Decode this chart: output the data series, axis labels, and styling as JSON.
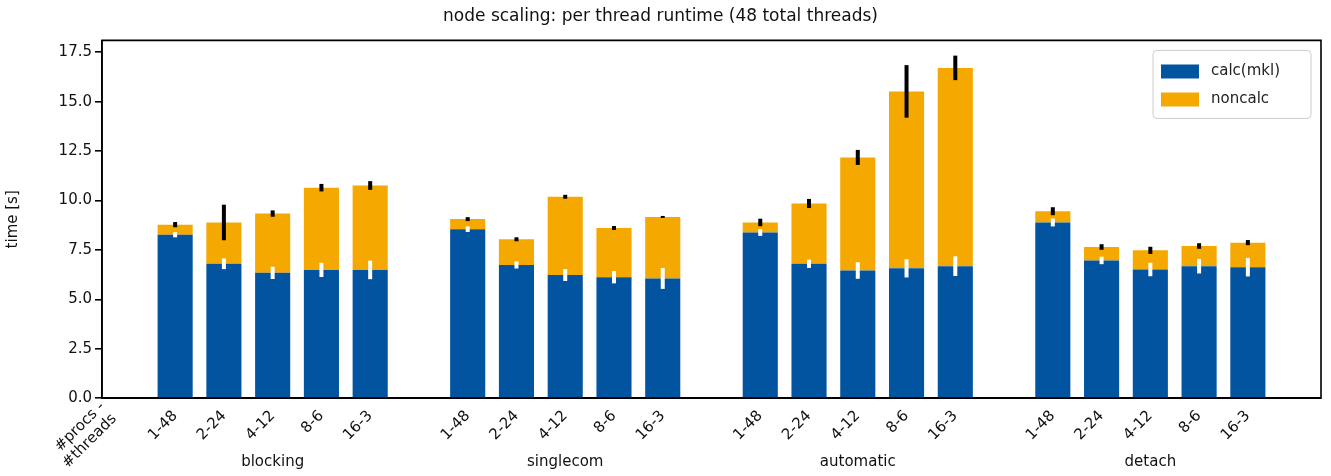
{
  "chart_data": {
    "type": "bar",
    "title": "node scaling: per thread runtime (48 total threads)",
    "ylabel": "time [s]",
    "categories": [
      null,
      "1-48",
      "2-24",
      "4-12",
      "8-6",
      "16-3",
      null,
      "1-48",
      "2-24",
      "4-12",
      "8-6",
      "16-3",
      null,
      "1-48",
      "2-24",
      "4-12",
      "8-6",
      "16-3",
      null,
      "1-48",
      "2-24",
      "4-12",
      "8-6",
      "16-3",
      null
    ],
    "stacked": true,
    "series": [
      {
        "name": "calc(mkl)",
        "color": "#0254a0",
        "values": [
          null,
          8.27,
          6.8,
          6.34,
          6.49,
          6.49,
          null,
          8.55,
          6.74,
          6.23,
          6.12,
          6.06,
          null,
          8.38,
          6.8,
          6.46,
          6.57,
          6.68,
          null,
          8.89,
          6.97,
          6.51,
          6.68,
          6.63,
          null
        ],
        "errors": [
          null,
          0.13,
          0.27,
          0.31,
          0.36,
          0.47,
          null,
          0.14,
          0.18,
          0.3,
          0.31,
          0.53,
          null,
          0.17,
          0.21,
          0.42,
          0.46,
          0.5,
          null,
          0.2,
          0.19,
          0.34,
          0.37,
          0.47,
          null
        ]
      },
      {
        "name": "noncalc",
        "color": "#f5a800",
        "values": [
          null,
          0.51,
          2.09,
          3.0,
          4.16,
          4.27,
          null,
          0.51,
          1.3,
          3.96,
          2.49,
          3.11,
          null,
          0.51,
          3.05,
          5.72,
          8.95,
          10.03,
          null,
          0.57,
          0.68,
          0.97,
          1.02,
          1.24,
          null
        ],
        "errors": [
          null,
          0.13,
          0.9,
          0.16,
          0.19,
          0.22,
          null,
          0.1,
          0.1,
          0.1,
          0.1,
          0.05,
          null,
          0.19,
          0.23,
          0.38,
          1.33,
          0.62,
          null,
          0.2,
          0.14,
          0.18,
          0.14,
          0.13,
          null
        ]
      }
    ],
    "ylim": [
      0,
      18.1
    ],
    "yticks": [
      {
        "value": 0,
        "label": "0.0"
      },
      {
        "value": 2.5,
        "label": "2.5"
      },
      {
        "value": 5,
        "label": "5.0"
      },
      {
        "value": 7.5,
        "label": "7.5"
      },
      {
        "value": 10,
        "label": "10.0"
      },
      {
        "value": 12.5,
        "label": "12.5"
      },
      {
        "value": 15,
        "label": "15.0"
      },
      {
        "value": 17.5,
        "label": "17.5"
      }
    ],
    "legend": "top right",
    "grid": false,
    "annotations": [
      "#procs -\n#threads",
      "blocking",
      "singlecom",
      "automatic",
      "detach"
    ]
  }
}
